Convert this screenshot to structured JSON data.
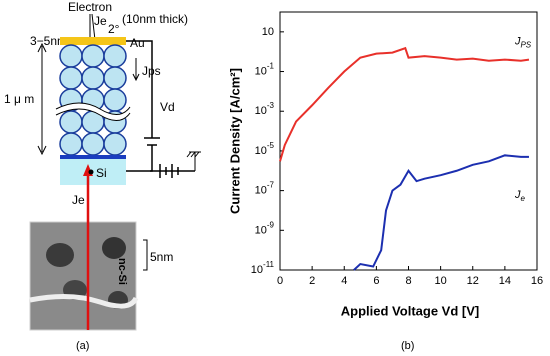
{
  "chart_data": {
    "type": "line",
    "y_label": "Current Density [A/cm²]",
    "x_label": "Applied Voltage Vd  [V]",
    "caption": "(b)",
    "log_y": true,
    "xlim": [
      0,
      16
    ],
    "xticks": [
      0,
      2,
      4,
      6,
      8,
      10,
      12,
      14,
      16
    ],
    "ylim": [
      1e-11,
      100
    ],
    "yticks": [
      10,
      {
        "value": 0.1,
        "label": "10-1"
      },
      {
        "value": 0.001,
        "label": "10-3"
      },
      {
        "value": 1e-05,
        "label": "10-5"
      },
      {
        "value": 1e-07,
        "label": "10-7"
      },
      {
        "value": 1e-09,
        "label": "10-9"
      },
      {
        "value": 1e-11,
        "label": "10-11"
      }
    ],
    "series": [
      {
        "name": "JPS",
        "color": "#e8302a",
        "x": [
          0,
          0.3,
          1,
          2,
          3,
          4,
          5,
          6,
          7,
          7.8,
          8,
          9,
          10,
          11,
          12,
          13,
          14,
          15,
          15.5
        ],
        "values": [
          3e-06,
          2e-05,
          0.0003,
          0.002,
          0.015,
          0.1,
          0.5,
          0.8,
          0.9,
          1.5,
          0.5,
          0.6,
          0.5,
          0.4,
          0.45,
          0.35,
          0.4,
          0.35,
          0.4
        ]
      },
      {
        "name": "Je",
        "color": "#1c2fb0",
        "x": [
          4.6,
          5,
          5.8,
          6.3,
          6.6,
          7,
          7.5,
          8,
          8.5,
          9,
          10,
          11,
          12,
          13,
          14,
          15,
          15.5
        ],
        "values": [
          1e-11,
          2e-11,
          1.5e-11,
          1e-10,
          1e-08,
          1e-07,
          2e-07,
          1e-06,
          3e-07,
          4e-07,
          6e-07,
          1e-06,
          2e-06,
          3e-06,
          6e-06,
          5e-06,
          5e-06
        ]
      }
    ]
  },
  "diagram": {
    "electron": "Electron",
    "je_top": "Je",
    "angle": "2°",
    "thick": "(10nm thick)",
    "pore": "3−5nm",
    "au": "Au",
    "jps": "Jps",
    "height": "1 μ m",
    "vd": "Vd",
    "si": "Si",
    "je_bottom": "Je",
    "ncsi": "nc-Si",
    "scale": "5nm",
    "caption": "(a)"
  }
}
